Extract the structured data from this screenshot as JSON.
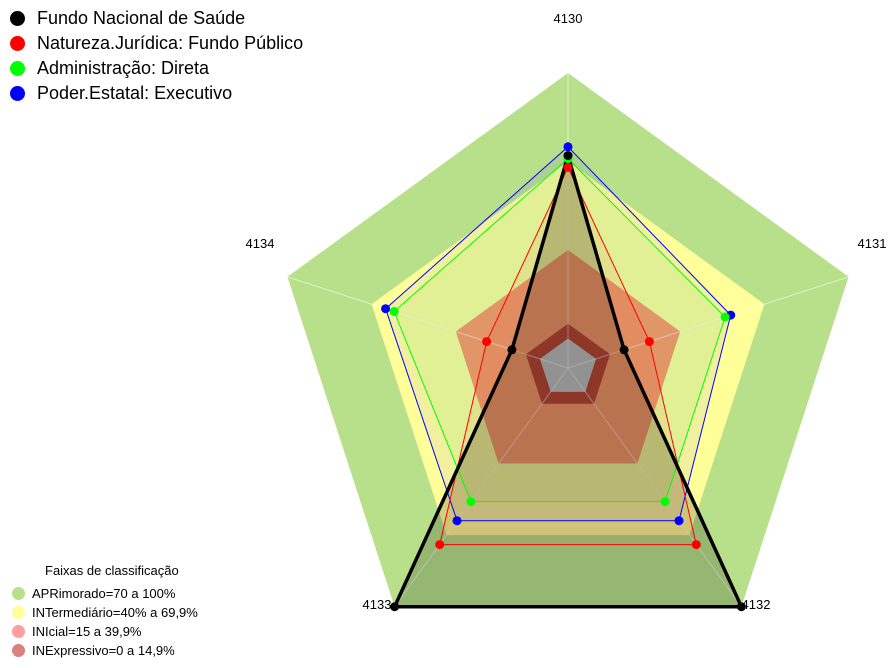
{
  "chart_data": {
    "type": "radar",
    "axes": [
      "4130",
      "4131",
      "4132",
      "4133",
      "4134"
    ],
    "range": [
      0,
      100
    ],
    "series": [
      {
        "name": "Fundo Nacional de Saúde",
        "color": "#000000",
        "values": [
          72,
          20,
          100,
          100,
          20
        ]
      },
      {
        "name": "Natureza.Jurídica: Fundo Público",
        "color": "#ff0000",
        "values": [
          68,
          29,
          74,
          74,
          29
        ]
      },
      {
        "name": "Administração: Direta",
        "color": "#00ff00",
        "values": [
          71,
          56,
          56,
          56,
          62
        ]
      },
      {
        "name": "Poder.Estatal: Executivo",
        "color": "#0000ff",
        "values": [
          75,
          58,
          64,
          64,
          65
        ]
      }
    ],
    "bands": [
      {
        "label": "APRimorado=70 a 100%",
        "from": 70,
        "to": 100,
        "color": "#b8e08a"
      },
      {
        "label": "INTermediário=40% a 69,9%",
        "from": 40,
        "to": 70,
        "color": "#ffff99"
      },
      {
        "label": "INIcial=15 a 39,9%",
        "from": 15,
        "to": 40,
        "color": "#ff9966"
      },
      {
        "label": "INExpressivo=0 a 14,9%",
        "from": 0,
        "to": 15,
        "color": "#c0422e"
      }
    ],
    "legend_swatch_colors": [
      "#b8e08a",
      "#ffff99",
      "#ff9e9e",
      "#d98080"
    ],
    "center_fill": "#c8c8c8",
    "bands_title": "Faixas de classificação"
  }
}
